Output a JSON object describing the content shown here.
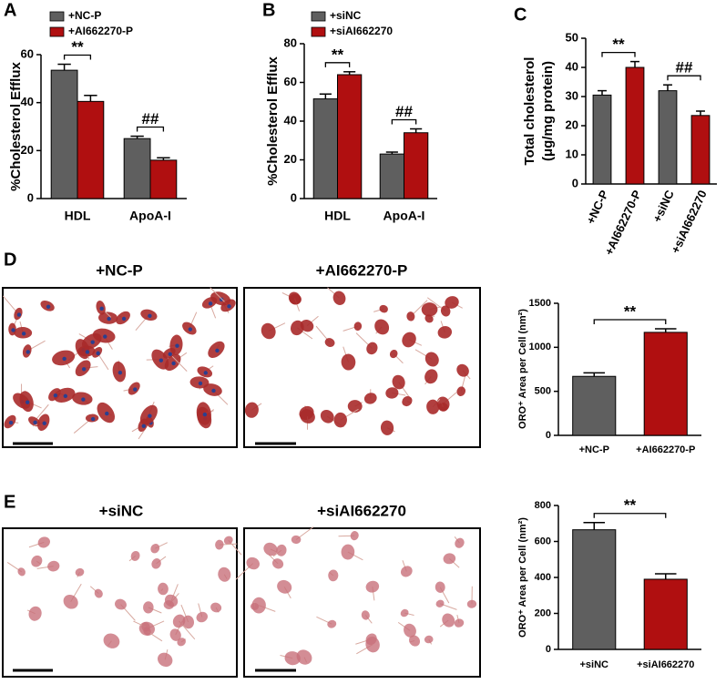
{
  "chart_data": [
    {
      "type": "bar",
      "panel": "A",
      "ylabel": "%Cholesterol Efflux",
      "categories": [
        "HDL",
        "ApoA-I"
      ],
      "series": [
        {
          "name": "+NC-P",
          "color": "#5f5f5f",
          "values": [
            53.5,
            25
          ],
          "errors": [
            2.5,
            1
          ]
        },
        {
          "name": "+AI662270-P",
          "color": "#b00f10",
          "values": [
            40.5,
            16
          ],
          "errors": [
            2.5,
            1
          ]
        }
      ],
      "ylim": [
        0,
        60
      ],
      "yticks": [
        0,
        20,
        40,
        60
      ],
      "annotations": [
        "**",
        "##"
      ]
    },
    {
      "type": "bar",
      "panel": "B",
      "ylabel": "%Cholesterol Efflux",
      "categories": [
        "HDL",
        "ApoA-I"
      ],
      "series": [
        {
          "name": "+siNC",
          "color": "#5f5f5f",
          "values": [
            51.5,
            23
          ],
          "errors": [
            2.5,
            1
          ]
        },
        {
          "name": "+siAI662270",
          "color": "#b00f10",
          "values": [
            64,
            34
          ],
          "errors": [
            1.5,
            2
          ]
        }
      ],
      "ylim": [
        0,
        80
      ],
      "yticks": [
        0,
        20,
        40,
        60,
        80
      ],
      "annotations": [
        "**",
        "##"
      ]
    },
    {
      "type": "bar",
      "panel": "C",
      "ylabel": [
        "Total cholesterol",
        "(μg/mg protein)"
      ],
      "categories": [
        "+NC-P",
        "+AI662270-P",
        "+siNC",
        "+siAI662270"
      ],
      "values": [
        30.5,
        40,
        32,
        23.5
      ],
      "errors": [
        1.5,
        2,
        2,
        1.5
      ],
      "colors": [
        "#5f5f5f",
        "#b00f10",
        "#5f5f5f",
        "#b00f10"
      ],
      "ylim": [
        0,
        50
      ],
      "yticks": [
        0,
        10,
        20,
        30,
        40,
        50
      ],
      "annotations": [
        "**",
        "##"
      ]
    },
    {
      "type": "bar",
      "ylabel": "ORO⁺ Area per Cell (nm²)",
      "categories": [
        "+NC-P",
        "+AI662270-P"
      ],
      "values": [
        670,
        1170
      ],
      "errors": [
        40,
        40
      ],
      "colors": [
        "#5f5f5f",
        "#b00f10"
      ],
      "ylim": [
        0,
        1500
      ],
      "yticks": [
        0,
        500,
        1000,
        1500
      ],
      "annotations": [
        "**"
      ]
    },
    {
      "type": "bar",
      "ylabel": "ORO⁺ Area per Cell (nm²)",
      "categories": [
        "+siNC",
        "+siAI662270"
      ],
      "values": [
        665,
        390
      ],
      "errors": [
        40,
        30
      ],
      "colors": [
        "#5f5f5f",
        "#b00f10"
      ],
      "ylim": [
        0,
        800
      ],
      "yticks": [
        0,
        200,
        400,
        600,
        800
      ],
      "annotations": [
        "**"
      ]
    }
  ],
  "image_panels": [
    {
      "label": "D",
      "titles": [
        "+NC-P",
        "+AI662270-P"
      ]
    },
    {
      "label": "E",
      "titles": [
        "+siNC",
        "+siAI662270"
      ]
    }
  ]
}
